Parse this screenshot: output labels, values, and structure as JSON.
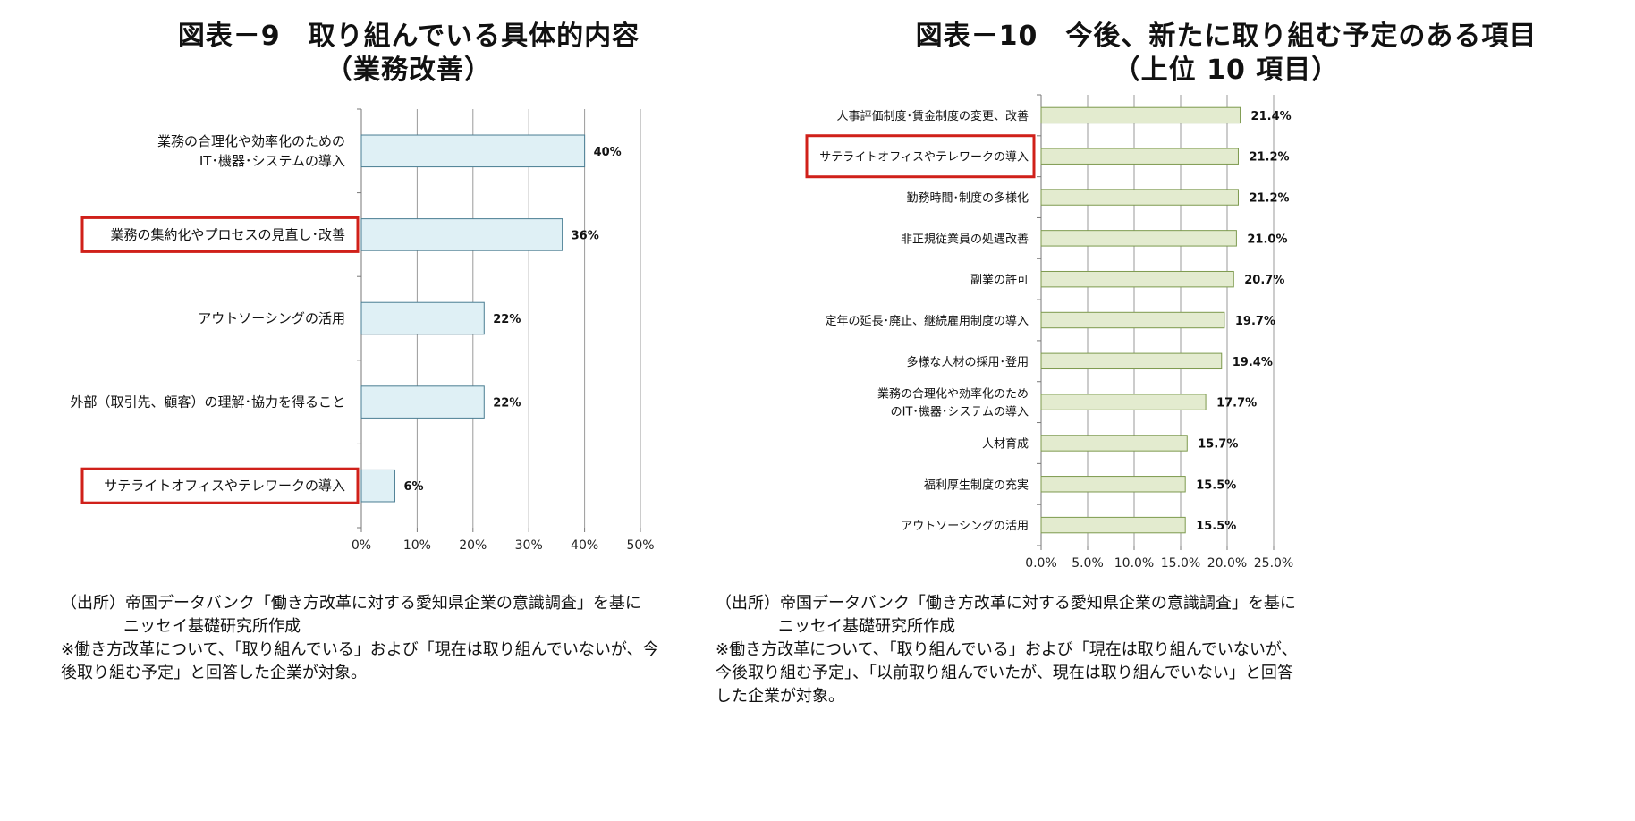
{
  "chart_data": [
    {
      "type": "bar",
      "orientation": "horizontal",
      "title": "図表－9　取り組んでいる具体的内容",
      "subtitle": "（業務改善）",
      "categories": [
        [
          "業務の合理化や効率化のための",
          "IT･機器･システムの導入"
        ],
        [
          "業務の集約化やプロセスの見直し･改善"
        ],
        [
          "アウトソーシングの活用"
        ],
        [
          "外部（取引先、顧客）の理解･協力を得ること"
        ],
        [
          "サテライトオフィスやテレワークの導入"
        ]
      ],
      "values": [
        40,
        36,
        22,
        22,
        6
      ],
      "value_labels": [
        "40%",
        "36%",
        "22%",
        "22%",
        "6%"
      ],
      "highlighted": [
        false,
        true,
        false,
        false,
        true
      ],
      "xlim": [
        0,
        50
      ],
      "xticks": [
        "0%",
        "10%",
        "20%",
        "30%",
        "40%",
        "50%"
      ],
      "bar_color": "#dff0f5",
      "bar_edge": "#4a7d92",
      "highlight_color": "#d0201a",
      "grid": true
    },
    {
      "type": "bar",
      "orientation": "horizontal",
      "title": "図表－10　今後、新たに取り組む予定のある項目",
      "subtitle": "（上位 10 項目）",
      "categories": [
        [
          "人事評価制度･賃金制度の変更、改善"
        ],
        [
          "サテライトオフィスやテレワークの導入"
        ],
        [
          "勤務時間･制度の多様化"
        ],
        [
          "非正規従業員の処遇改善"
        ],
        [
          "副業の許可"
        ],
        [
          "定年の延長･廃止、継続雇用制度の導入"
        ],
        [
          "多様な人材の採用･登用"
        ],
        [
          "業務の合理化や効率化のため",
          "のIT･機器･システムの導入"
        ],
        [
          "人材育成"
        ],
        [
          "福利厚生制度の充実"
        ],
        [
          "アウトソーシングの活用"
        ]
      ],
      "values": [
        21.4,
        21.2,
        21.2,
        21.0,
        20.7,
        19.7,
        19.4,
        17.7,
        15.7,
        15.5,
        15.5
      ],
      "value_labels": [
        "21.4%",
        "21.2%",
        "21.2%",
        "21.0%",
        "20.7%",
        "19.7%",
        "19.4%",
        "17.7%",
        "15.7%",
        "15.5%",
        "15.5%"
      ],
      "highlighted": [
        false,
        true,
        false,
        false,
        false,
        false,
        false,
        false,
        false,
        false,
        false
      ],
      "xlim": [
        0,
        25
      ],
      "xticks": [
        "0.0%",
        "5.0%",
        "10.0%",
        "15.0%",
        "20.0%",
        "25.0%"
      ],
      "bar_color": "#e3ebcf",
      "bar_edge": "#7d9a4e",
      "highlight_color": "#d0201a",
      "grid": true
    }
  ],
  "notes": {
    "left": {
      "source_line1": "（出所）帝国データバンク「働き方改革に対する愛知県企業の意識調査」を基に",
      "source_line2": "ニッセイ基礎研究所作成",
      "note_line1": "※働き方改革について、「取り組んでいる」および「現在は取り組んでいないが、今",
      "note_line2": "後取り組む予定」と回答した企業が対象。"
    },
    "right": {
      "source_line1": "（出所）帝国データバンク「働き方改革に対する愛知県企業の意識調査」を基に",
      "source_line2": "ニッセイ基礎研究所作成",
      "note_line1": "※働き方改革について、「取り組んでいる」および「現在は取り組んでいないが、",
      "note_line2": "今後取り組む予定」、「以前取り組んでいたが、現在は取り組んでいない」と回答",
      "note_line3": "した企業が対象。"
    }
  }
}
